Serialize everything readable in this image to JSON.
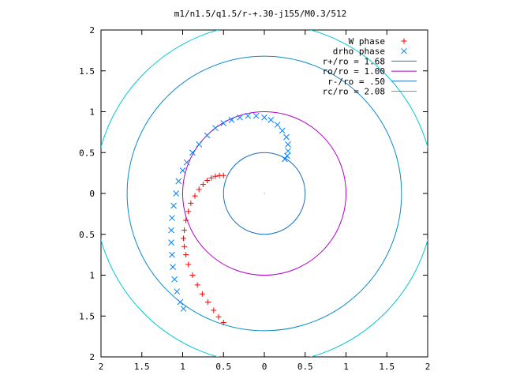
{
  "chart_data": {
    "type": "scatter",
    "title": "m1/n1.5/q1.5/r-+.30-j155/M0.3/512",
    "xlabel": "",
    "ylabel": "",
    "xlim": [
      -2,
      2
    ],
    "ylim": [
      -2,
      2
    ],
    "x_ticks": [
      {
        "value": -2,
        "label": "2"
      },
      {
        "value": -1.5,
        "label": "1.5"
      },
      {
        "value": -1,
        "label": "1"
      },
      {
        "value": -0.5,
        "label": "0.5"
      },
      {
        "value": 0,
        "label": "0"
      },
      {
        "value": 0.5,
        "label": "0.5"
      },
      {
        "value": 1,
        "label": "1"
      },
      {
        "value": 1.5,
        "label": "1.5"
      },
      {
        "value": 2,
        "label": "2"
      }
    ],
    "y_ticks": [
      {
        "value": 2,
        "label": "2"
      },
      {
        "value": 1.5,
        "label": "1.5"
      },
      {
        "value": 1,
        "label": "1"
      },
      {
        "value": 0.5,
        "label": "0.5"
      },
      {
        "value": 0,
        "label": "0"
      },
      {
        "value": -0.5,
        "label": "0.5"
      },
      {
        "value": -1,
        "label": "1"
      },
      {
        "value": -1.5,
        "label": "1.5"
      },
      {
        "value": -2,
        "label": "2"
      }
    ],
    "legend_position": "top-right",
    "grid": false,
    "series": [
      {
        "name": "W phase",
        "kind": "points",
        "marker": "+",
        "color": "#ff0000",
        "points": [
          [
            -0.5,
            0.22
          ],
          [
            -0.55,
            0.22
          ],
          [
            -0.6,
            0.21
          ],
          [
            -0.65,
            0.19
          ],
          [
            -0.7,
            0.16
          ],
          [
            -0.75,
            0.11
          ],
          [
            -0.8,
            0.05
          ],
          [
            -0.85,
            -0.03
          ],
          [
            -0.9,
            -0.12
          ],
          [
            -0.93,
            -0.22
          ],
          [
            -0.96,
            -0.33
          ],
          [
            -0.98,
            -0.45
          ],
          [
            -0.99,
            -0.55
          ],
          [
            -0.98,
            -0.65
          ],
          [
            -0.96,
            -0.75
          ],
          [
            -0.93,
            -0.87
          ],
          [
            -0.88,
            -1.0
          ],
          [
            -0.82,
            -1.12
          ],
          [
            -0.76,
            -1.23
          ],
          [
            -0.69,
            -1.33
          ],
          [
            -0.62,
            -1.43
          ],
          [
            -0.56,
            -1.51
          ],
          [
            -0.5,
            -1.58
          ]
        ]
      },
      {
        "name": "drho phase",
        "kind": "points",
        "marker": "x",
        "color": "#0080ff",
        "points": [
          [
            0.25,
            0.42
          ],
          [
            0.28,
            0.46
          ],
          [
            0.29,
            0.52
          ],
          [
            0.29,
            0.6
          ],
          [
            0.27,
            0.69
          ],
          [
            0.22,
            0.77
          ],
          [
            0.16,
            0.84
          ],
          [
            0.08,
            0.9
          ],
          [
            0.0,
            0.93
          ],
          [
            -0.1,
            0.95
          ],
          [
            -0.2,
            0.95
          ],
          [
            -0.3,
            0.93
          ],
          [
            -0.4,
            0.9
          ],
          [
            -0.5,
            0.86
          ],
          [
            -0.6,
            0.8
          ],
          [
            -0.7,
            0.71
          ],
          [
            -0.8,
            0.6
          ],
          [
            -0.88,
            0.5
          ],
          [
            -0.95,
            0.38
          ],
          [
            -1.0,
            0.28
          ],
          [
            -1.05,
            0.15
          ],
          [
            -1.08,
            0.0
          ],
          [
            -1.11,
            -0.15
          ],
          [
            -1.13,
            -0.3
          ],
          [
            -1.14,
            -0.45
          ],
          [
            -1.14,
            -0.6
          ],
          [
            -1.13,
            -0.75
          ],
          [
            -1.12,
            -0.9
          ],
          [
            -1.1,
            -1.05
          ],
          [
            -1.07,
            -1.2
          ],
          [
            -1.03,
            -1.33
          ],
          [
            -0.99,
            -1.41
          ]
        ]
      },
      {
        "name": "r+/ro = 1.68",
        "kind": "circle",
        "radius": 1.68,
        "color": "#0a8ac8"
      },
      {
        "name": "ro/ro = 1.00",
        "kind": "circle",
        "radius": 1.0,
        "color": "#b000c8"
      },
      {
        "name": "r-/ro = .50",
        "kind": "circle",
        "radius": 0.5,
        "color": "#1a6ec0"
      },
      {
        "name": "rc/ro = 2.08",
        "kind": "circle",
        "radius": 2.08,
        "color": "#00c8d0"
      }
    ]
  }
}
